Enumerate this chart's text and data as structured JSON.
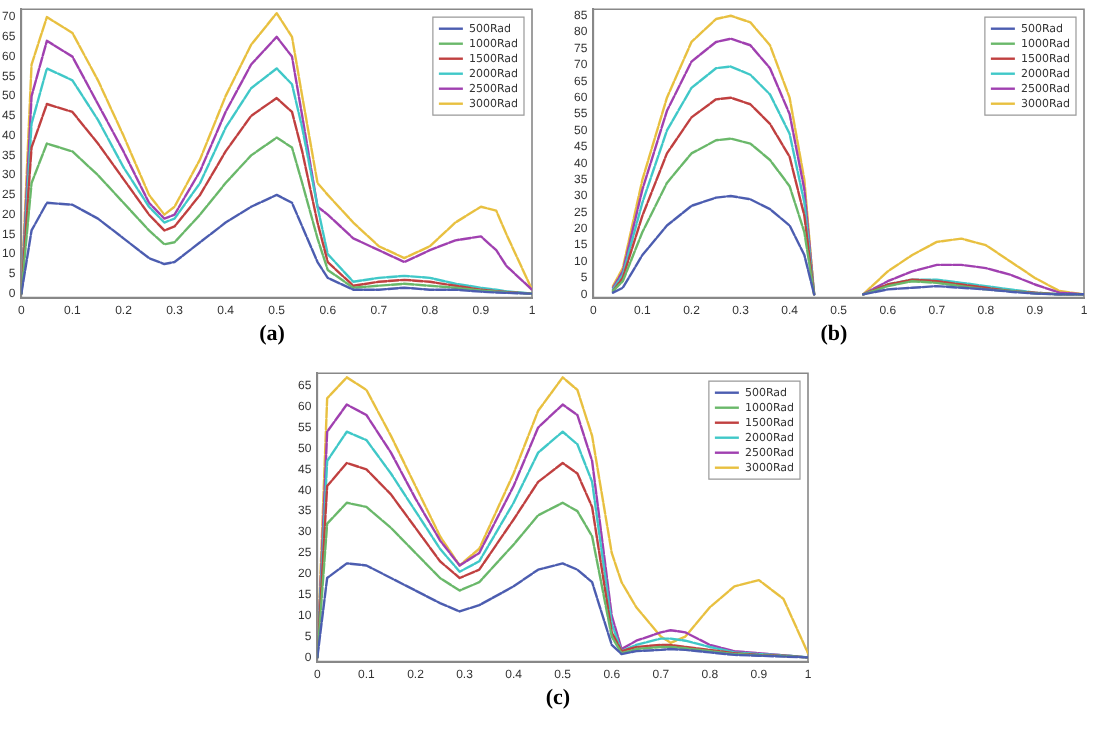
{
  "chart_data": [
    {
      "type": "line",
      "x": [
        0,
        0.02,
        0.05,
        0.1,
        0.15,
        0.2,
        0.25,
        0.28,
        0.3,
        0.35,
        0.4,
        0.45,
        0.5,
        0.53,
        0.55,
        0.58,
        0.6,
        0.65,
        0.7,
        0.75,
        0.8,
        0.85,
        0.9,
        0.93,
        0.95,
        1
      ],
      "series": [
        {
          "name": "500Rad",
          "color": "#4c5db0",
          "values": [
            0,
            16,
            23,
            22.5,
            19,
            14,
            9,
            7.5,
            8,
            13,
            18,
            22,
            25,
            23,
            17,
            8,
            4,
            1,
            1,
            1.5,
            1,
            1,
            0.5,
            0.3,
            0.2,
            0
          ]
        },
        {
          "name": "1000Rad",
          "color": "#6ab86a",
          "values": [
            0,
            28,
            38,
            36,
            30,
            23,
            16,
            12.5,
            13,
            20,
            28,
            35,
            39.5,
            37,
            28,
            14,
            6,
            1.5,
            2,
            2.5,
            2,
            1.5,
            0.8,
            0.5,
            0.3,
            0
          ]
        },
        {
          "name": "1500Rad",
          "color": "#c04040",
          "values": [
            0,
            37,
            48,
            46,
            38,
            29,
            20,
            16,
            17,
            25,
            36,
            45,
            49.5,
            46,
            36,
            18,
            8,
            2,
            3,
            3.5,
            3,
            2,
            1,
            0.6,
            0.4,
            0
          ]
        },
        {
          "name": "2000Rad",
          "color": "#40c8c8",
          "values": [
            0,
            43,
            57,
            54,
            44,
            32,
            22,
            18,
            19,
            28,
            42,
            52,
            57,
            53,
            42,
            22,
            10,
            3,
            4,
            4.5,
            4,
            2.5,
            1.5,
            1,
            0.6,
            0
          ]
        },
        {
          "name": "2500Rad",
          "color": "#a040b0",
          "values": [
            0,
            50,
            64,
            60,
            48,
            36,
            23,
            19,
            20,
            31,
            46,
            58,
            65,
            60,
            45,
            22,
            20,
            14,
            11,
            8,
            11,
            13.5,
            14.5,
            11,
            7,
            1
          ]
        },
        {
          "name": "3000Rad",
          "color": "#e8c040",
          "values": [
            0,
            58,
            70,
            66,
            54,
            40,
            25,
            20,
            22,
            34,
            50,
            63,
            71,
            65,
            50,
            28,
            25,
            18,
            12,
            9,
            12,
            18,
            22,
            21,
            15,
            1
          ]
        }
      ],
      "xlim": [
        0,
        1
      ],
      "ylim": [
        -1,
        72
      ],
      "xticks": [
        0,
        0.1,
        0.2,
        0.3,
        0.4,
        0.5,
        0.6,
        0.7,
        0.8,
        0.9,
        1
      ],
      "yticks": [
        0,
        5,
        10,
        15,
        20,
        25,
        30,
        35,
        40,
        45,
        50,
        55,
        60,
        65,
        70
      ],
      "legend": "top right",
      "line_style": "dashed",
      "marker": "none",
      "grid": false,
      "annotations": [
        "(a)"
      ]
    },
    {
      "type": "line",
      "x": [
        0.04,
        0.06,
        0.1,
        0.15,
        0.2,
        0.25,
        0.28,
        0.32,
        0.36,
        0.4,
        0.43,
        0.45,
        0.5,
        0.55,
        0.6,
        0.65,
        0.7,
        0.75,
        0.8,
        0.85,
        0.9,
        0.95,
        1
      ],
      "series": [
        {
          "name": "500Rad",
          "color": "#4c5db0",
          "values": [
            0.5,
            2,
            12,
            21,
            27,
            29.5,
            30,
            29,
            26,
            21,
            12,
            0,
            null,
            0,
            1.5,
            2,
            2.5,
            2,
            1.5,
            0.8,
            0.2,
            0,
            0
          ]
        },
        {
          "name": "1000Rad",
          "color": "#6ab86a",
          "values": [
            1,
            4,
            19,
            34,
            43,
            47,
            47.5,
            46,
            41,
            33,
            19,
            0,
            null,
            0,
            2.5,
            4,
            3.5,
            2.5,
            1.5,
            1,
            0.3,
            0,
            0
          ]
        },
        {
          "name": "1500Rad",
          "color": "#c04040",
          "values": [
            1,
            5,
            24,
            43,
            54,
            59.5,
            60,
            58,
            52,
            42,
            24,
            0,
            null,
            0,
            3,
            4.5,
            4,
            3,
            2,
            1,
            0.5,
            0,
            0
          ]
        },
        {
          "name": "2000Rad",
          "color": "#40c8c8",
          "values": [
            1.5,
            6,
            28,
            50,
            63,
            69,
            69.5,
            67,
            61,
            49,
            28,
            0,
            null,
            0,
            3,
            4.5,
            4.5,
            3.5,
            2.5,
            1.5,
            0.5,
            0,
            0
          ]
        },
        {
          "name": "2500Rad",
          "color": "#a040b0",
          "values": [
            2,
            7,
            32,
            56,
            71,
            77,
            78,
            76,
            69,
            55,
            32,
            0,
            null,
            0,
            4,
            7,
            9,
            9,
            8,
            6,
            3,
            0.5,
            0
          ]
        },
        {
          "name": "3000Rad",
          "color": "#e8c040",
          "values": [
            2.5,
            8,
            35,
            60,
            77,
            84,
            85,
            83,
            76,
            60,
            35,
            0,
            null,
            0,
            7,
            12,
            16,
            17,
            15,
            10,
            5,
            1,
            0
          ]
        }
      ],
      "xlim": [
        0,
        1
      ],
      "ylim": [
        -1,
        87
      ],
      "xticks": [
        0,
        0.1,
        0.2,
        0.3,
        0.4,
        0.5,
        0.6,
        0.7,
        0.8,
        0.9,
        1
      ],
      "yticks": [
        0,
        5,
        10,
        15,
        20,
        25,
        30,
        35,
        40,
        45,
        50,
        55,
        60,
        65,
        70,
        75,
        80,
        85
      ],
      "legend": "top right",
      "line_style": "dashed",
      "marker": "none",
      "grid": false,
      "annotations": [
        "(b)"
      ]
    },
    {
      "type": "line",
      "x": [
        0,
        0.02,
        0.06,
        0.1,
        0.15,
        0.2,
        0.25,
        0.29,
        0.33,
        0.4,
        0.45,
        0.5,
        0.53,
        0.56,
        0.6,
        0.62,
        0.65,
        0.7,
        0.72,
        0.75,
        0.8,
        0.85,
        0.9,
        0.95,
        1
      ],
      "series": [
        {
          "name": "500Rad",
          "color": "#4c5db0",
          "values": [
            0,
            19,
            22.5,
            22,
            19,
            16,
            13,
            11,
            12.5,
            17,
            21,
            22.5,
            21,
            18,
            3,
            0.8,
            1.5,
            1.8,
            2,
            1.8,
            1.2,
            0.6,
            0.4,
            0.2,
            0
          ]
        },
        {
          "name": "1000Rad",
          "color": "#6ab86a",
          "values": [
            0,
            32,
            37,
            36,
            31,
            25,
            19,
            16,
            18,
            27,
            34,
            37,
            35,
            29,
            5,
            1,
            2,
            2.5,
            2.5,
            2.2,
            1.5,
            0.8,
            0.5,
            0.3,
            0
          ]
        },
        {
          "name": "1500Rad",
          "color": "#c04040",
          "values": [
            0,
            41,
            46.5,
            45,
            39,
            31,
            23,
            19,
            21,
            33,
            42,
            46.5,
            44,
            36,
            6,
            1.5,
            2.5,
            3,
            3,
            2.5,
            1.8,
            1,
            0.6,
            0.4,
            0
          ]
        },
        {
          "name": "2000Rad",
          "color": "#40c8c8",
          "values": [
            0,
            47,
            54,
            52,
            44,
            35,
            26,
            20.5,
            23,
            37,
            49,
            54,
            51,
            42,
            8,
            1.5,
            3,
            4.5,
            4.5,
            4,
            2.5,
            1.2,
            0.8,
            0.5,
            0
          ]
        },
        {
          "name": "2500Rad",
          "color": "#a040b0",
          "values": [
            0,
            54,
            60.5,
            58,
            49,
            38,
            28,
            22,
            25,
            41,
            55,
            60.5,
            58,
            47,
            10,
            2,
            4,
            6,
            6.5,
            6,
            3,
            1.5,
            1,
            0.5,
            0
          ]
        },
        {
          "name": "3000Rad",
          "color": "#e8c040",
          "values": [
            0,
            62,
            67,
            64,
            53,
            41,
            29,
            22,
            26,
            44,
            59,
            67,
            64,
            53,
            25,
            18,
            12,
            5,
            3.5,
            5,
            12,
            17,
            18.5,
            14,
            1
          ]
        }
      ],
      "xlim": [
        0,
        1
      ],
      "ylim": [
        -1,
        68
      ],
      "xticks": [
        0,
        0.1,
        0.2,
        0.3,
        0.4,
        0.5,
        0.6,
        0.7,
        0.8,
        0.9,
        1
      ],
      "yticks": [
        0,
        5,
        10,
        15,
        20,
        25,
        30,
        35,
        40,
        45,
        50,
        55,
        60,
        65
      ],
      "legend": "top right",
      "line_style": "dashed",
      "marker": "none",
      "grid": false,
      "annotations": [
        "(c)"
      ]
    }
  ]
}
